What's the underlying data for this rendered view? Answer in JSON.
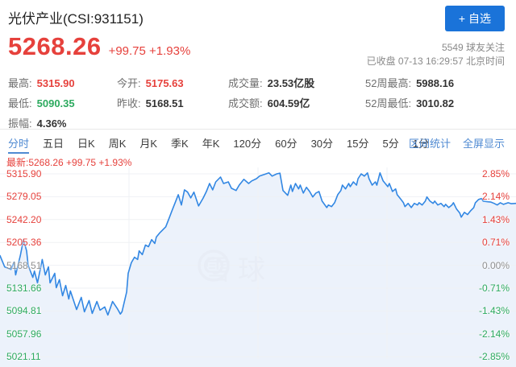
{
  "colors": {
    "up_red": "#e6413c",
    "down_green": "#2daa5f",
    "accent_blue": "#4f8ad2",
    "button_blue": "#1a73d9",
    "line_blue": "#3287e3",
    "fill_blue": "#ecf2fb",
    "grid_gray": "#eff1f4",
    "watermark_gray": "#e8edf6"
  },
  "header": {
    "title": "光伏产业(CSI:931151)",
    "follow_button": "+ 自选",
    "price": "5268.26",
    "change": "+99.75 +1.93%",
    "followers": "5549 球友关注",
    "market_status": "已收盘 07-13 16:29:57 北京时间"
  },
  "stats_columns": [
    [
      {
        "label": "最高:",
        "value": "5315.90",
        "tone": "up"
      },
      {
        "label": "最低:",
        "value": "5090.35",
        "tone": "down"
      },
      {
        "label": "振幅:",
        "value": "4.36%",
        "tone": "plain"
      }
    ],
    [
      {
        "label": "今开:",
        "value": "5175.63",
        "tone": "up"
      },
      {
        "label": "昨收:",
        "value": "5168.51",
        "tone": "plain"
      }
    ],
    [
      {
        "label": "成交量:",
        "value": "23.53亿股",
        "tone": "plain"
      },
      {
        "label": "成交额:",
        "value": "604.59亿",
        "tone": "plain"
      }
    ],
    [
      {
        "label": "52周最高:",
        "value": "5988.16",
        "tone": "plain"
      },
      {
        "label": "52周最低:",
        "value": "3010.82",
        "tone": "plain"
      }
    ]
  ],
  "tab_bar": {
    "tabs": [
      "分时",
      "五日",
      "日K",
      "周K",
      "月K",
      "季K",
      "年K",
      "120分",
      "60分",
      "30分",
      "15分",
      "5分",
      "1分"
    ],
    "active_index": 0,
    "right_links": [
      "区间统计",
      "全屏显示"
    ]
  },
  "chart_data": {
    "type": "line",
    "title": "光伏产业(CSI:931151) 分时",
    "latest_line": "最新:5268.26 +99.75 +1.93%",
    "baseline_price": 5168.51,
    "open_price": 5175.63,
    "close_price": 5268.26,
    "day_high": 5315.9,
    "day_low": 5090.35,
    "ylim_pct": [
      -2.85,
      2.85
    ],
    "x_range_minutes": [
      0,
      330
    ],
    "grid": true,
    "legend": "none",
    "y_axis_left_prices": [
      "5315.90",
      "5279.05",
      "5242.20",
      "5205.36",
      "5168.51",
      "5131.66",
      "5094.81",
      "5057.96",
      "5021.11"
    ],
    "y_axis_right_percents": [
      "2.85%",
      "2.14%",
      "1.43%",
      "0.71%",
      "0.00%",
      "-0.71%",
      "-1.43%",
      "-2.14%",
      "-2.85%"
    ],
    "watermark_text": "雪球",
    "series": [
      {
        "name": "pct_change_vs_prev_close",
        "points": [
          [
            0,
            0.3
          ],
          [
            3,
            -0.05
          ],
          [
            7,
            -0.13
          ],
          [
            9,
            0.1
          ],
          [
            10,
            -0.3
          ],
          [
            13,
            0.3
          ],
          [
            15,
            0.8
          ],
          [
            17,
            0.45
          ],
          [
            18,
            0.0
          ],
          [
            21,
            -0.38
          ],
          [
            22,
            -0.18
          ],
          [
            24,
            -0.55
          ],
          [
            27,
            0.18
          ],
          [
            29,
            -0.3
          ],
          [
            31,
            -0.05
          ],
          [
            32,
            -0.55
          ],
          [
            35,
            -0.25
          ],
          [
            36,
            -0.7
          ],
          [
            38,
            -0.45
          ],
          [
            40,
            -0.95
          ],
          [
            42,
            -0.63
          ],
          [
            44,
            -1.05
          ],
          [
            45,
            -0.8
          ],
          [
            49,
            -1.38
          ],
          [
            52,
            -1.0
          ],
          [
            54,
            -1.45
          ],
          [
            57,
            -1.1
          ],
          [
            59,
            -1.5
          ],
          [
            62,
            -1.13
          ],
          [
            64,
            -1.4
          ],
          [
            67,
            -1.3
          ],
          [
            69,
            -1.55
          ],
          [
            72,
            -1.13
          ],
          [
            75,
            -1.35
          ],
          [
            77,
            -1.52
          ],
          [
            78,
            -1.45
          ],
          [
            81,
            -0.83
          ],
          [
            82,
            -0.25
          ],
          [
            84,
            0.08
          ],
          [
            86,
            0.25
          ],
          [
            88,
            0.18
          ],
          [
            89,
            0.45
          ],
          [
            91,
            0.33
          ],
          [
            93,
            0.63
          ],
          [
            95,
            0.58
          ],
          [
            97,
            0.8
          ],
          [
            99,
            0.68
          ],
          [
            100,
            0.88
          ],
          [
            102,
            1.0
          ],
          [
            106,
            1.2
          ],
          [
            108,
            1.45
          ],
          [
            110,
            1.7
          ],
          [
            112,
            1.95
          ],
          [
            114,
            2.2
          ],
          [
            116,
            1.88
          ],
          [
            118,
            2.35
          ],
          [
            120,
            2.28
          ],
          [
            122,
            2.1
          ],
          [
            124,
            2.28
          ],
          [
            127,
            1.85
          ],
          [
            130,
            2.1
          ],
          [
            132,
            2.3
          ],
          [
            134,
            2.55
          ],
          [
            136,
            2.35
          ],
          [
            138,
            2.6
          ],
          [
            141,
            2.75
          ],
          [
            143,
            2.55
          ],
          [
            146,
            2.6
          ],
          [
            148,
            2.4
          ],
          [
            151,
            2.33
          ],
          [
            153,
            2.5
          ],
          [
            156,
            2.68
          ],
          [
            159,
            2.55
          ],
          [
            161,
            2.63
          ],
          [
            164,
            2.7
          ],
          [
            166,
            2.78
          ],
          [
            169,
            2.83
          ],
          [
            172,
            2.88
          ],
          [
            174,
            2.78
          ],
          [
            177,
            2.85
          ],
          [
            179,
            2.87
          ],
          [
            181,
            2.33
          ],
          [
            184,
            2.18
          ],
          [
            186,
            2.5
          ],
          [
            187,
            2.3
          ],
          [
            189,
            2.55
          ],
          [
            191,
            2.38
          ],
          [
            192,
            2.5
          ],
          [
            194,
            2.25
          ],
          [
            196,
            2.43
          ],
          [
            198,
            2.3
          ],
          [
            200,
            2.13
          ],
          [
            202,
            2.25
          ],
          [
            204,
            2.3
          ],
          [
            206,
            2.0
          ],
          [
            209,
            1.8
          ],
          [
            210,
            1.88
          ],
          [
            212,
            1.83
          ],
          [
            214,
            1.95
          ],
          [
            216,
            2.2
          ],
          [
            218,
            2.33
          ],
          [
            219,
            2.5
          ],
          [
            221,
            2.38
          ],
          [
            223,
            2.55
          ],
          [
            224,
            2.45
          ],
          [
            226,
            2.6
          ],
          [
            228,
            2.5
          ],
          [
            229,
            2.7
          ],
          [
            231,
            2.85
          ],
          [
            233,
            2.78
          ],
          [
            235,
            2.88
          ],
          [
            236,
            2.7
          ],
          [
            238,
            2.5
          ],
          [
            240,
            2.6
          ],
          [
            241,
            2.5
          ],
          [
            243,
            2.88
          ],
          [
            245,
            2.63
          ],
          [
            248,
            2.45
          ],
          [
            249,
            2.55
          ],
          [
            251,
            2.3
          ],
          [
            253,
            2.38
          ],
          [
            254,
            2.2
          ],
          [
            256,
            2.08
          ],
          [
            258,
            1.95
          ],
          [
            259,
            1.83
          ],
          [
            261,
            1.93
          ],
          [
            263,
            1.8
          ],
          [
            265,
            1.93
          ],
          [
            267,
            1.88
          ],
          [
            268,
            1.95
          ],
          [
            270,
            1.88
          ],
          [
            272,
            2.0
          ],
          [
            273,
            2.13
          ],
          [
            275,
            2.0
          ],
          [
            277,
            1.93
          ],
          [
            278,
            2.0
          ],
          [
            280,
            1.88
          ],
          [
            282,
            1.93
          ],
          [
            284,
            1.83
          ],
          [
            285,
            1.9
          ],
          [
            287,
            1.8
          ],
          [
            289,
            1.88
          ],
          [
            290,
            1.95
          ],
          [
            292,
            1.75
          ],
          [
            294,
            1.63
          ],
          [
            295,
            1.5
          ],
          [
            297,
            1.65
          ],
          [
            299,
            1.58
          ],
          [
            301,
            1.7
          ],
          [
            303,
            1.8
          ],
          [
            304,
            1.95
          ],
          [
            306,
            2.05
          ],
          [
            308,
            2.08
          ],
          [
            309,
            2.0
          ],
          [
            312,
            1.98
          ],
          [
            314,
            1.97
          ],
          [
            316,
            1.93
          ],
          [
            318,
            1.88
          ],
          [
            320,
            1.95
          ],
          [
            322,
            1.9
          ],
          [
            325,
            1.95
          ],
          [
            327,
            1.92
          ],
          [
            330,
            1.93
          ]
        ]
      }
    ]
  }
}
